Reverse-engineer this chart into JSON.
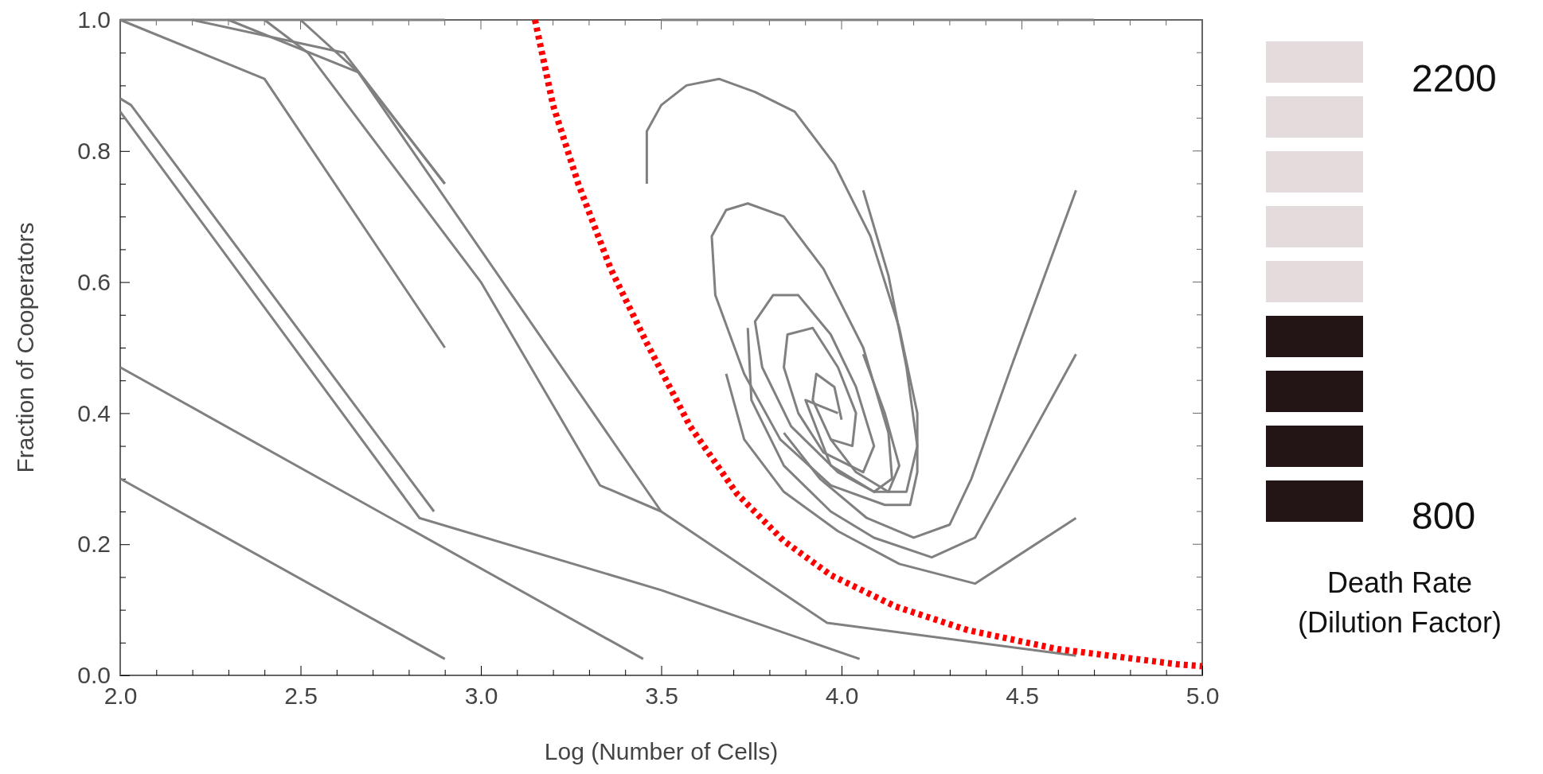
{
  "chart_data": {
    "type": "line",
    "xlabel": "Log (Number of Cells)",
    "ylabel": "Fraction of Cooperators",
    "xlim": [
      2.0,
      5.0
    ],
    "ylim": [
      0.0,
      1.0
    ],
    "xticks": [
      {
        "value": 2.0,
        "label": "2.0"
      },
      {
        "value": 2.1,
        "label": null
      },
      {
        "value": 2.2,
        "label": null
      },
      {
        "value": 2.3,
        "label": null
      },
      {
        "value": 2.4,
        "label": null
      },
      {
        "value": 2.5,
        "label": "2.5"
      },
      {
        "value": 2.6,
        "label": null
      },
      {
        "value": 2.7,
        "label": null
      },
      {
        "value": 2.8,
        "label": null
      },
      {
        "value": 2.9,
        "label": null
      },
      {
        "value": 3.0,
        "label": "3.0"
      },
      {
        "value": 3.1,
        "label": null
      },
      {
        "value": 3.2,
        "label": null
      },
      {
        "value": 3.3,
        "label": null
      },
      {
        "value": 3.4,
        "label": null
      },
      {
        "value": 3.5,
        "label": "3.5"
      },
      {
        "value": 3.6,
        "label": null
      },
      {
        "value": 3.7,
        "label": null
      },
      {
        "value": 3.8,
        "label": null
      },
      {
        "value": 3.9,
        "label": null
      },
      {
        "value": 4.0,
        "label": "4.0"
      },
      {
        "value": 4.1,
        "label": null
      },
      {
        "value": 4.2,
        "label": null
      },
      {
        "value": 4.3,
        "label": null
      },
      {
        "value": 4.4,
        "label": null
      },
      {
        "value": 4.5,
        "label": "4.5"
      },
      {
        "value": 4.6,
        "label": null
      },
      {
        "value": 4.7,
        "label": null
      },
      {
        "value": 4.8,
        "label": null
      },
      {
        "value": 4.9,
        "label": null
      },
      {
        "value": 5.0,
        "label": "5.0"
      }
    ],
    "yticks": [
      {
        "value": 0.0,
        "label": "0.0"
      },
      {
        "value": 0.05,
        "label": null
      },
      {
        "value": 0.1,
        "label": null
      },
      {
        "value": 0.15,
        "label": null
      },
      {
        "value": 0.2,
        "label": "0.2"
      },
      {
        "value": 0.25,
        "label": null
      },
      {
        "value": 0.3,
        "label": null
      },
      {
        "value": 0.35,
        "label": null
      },
      {
        "value": 0.4,
        "label": "0.4"
      },
      {
        "value": 0.45,
        "label": null
      },
      {
        "value": 0.5,
        "label": null
      },
      {
        "value": 0.55,
        "label": null
      },
      {
        "value": 0.6,
        "label": "0.6"
      },
      {
        "value": 0.65,
        "label": null
      },
      {
        "value": 0.7,
        "label": null
      },
      {
        "value": 0.75,
        "label": null
      },
      {
        "value": 0.8,
        "label": "0.8"
      },
      {
        "value": 0.85,
        "label": null
      },
      {
        "value": 0.9,
        "label": null
      },
      {
        "value": 0.95,
        "label": null
      },
      {
        "value": 1.0,
        "label": "1.0"
      }
    ],
    "grid": false,
    "marker": "none",
    "series": [
      {
        "color": "#808080",
        "x": [
          2.0,
          2.4,
          2.9
        ],
        "values": [
          1.0,
          0.91,
          0.5
        ]
      },
      {
        "color": "#808080",
        "x": [
          2.2,
          2.62,
          2.9
        ],
        "values": [
          1.0,
          0.95,
          0.75
        ]
      },
      {
        "color": "#808080",
        "x": [
          2.3,
          2.66,
          2.9
        ],
        "values": [
          1.0,
          0.92,
          0.75
        ]
      },
      {
        "color": "#808080",
        "x": [
          2.4,
          2.52,
          3.0,
          3.33,
          3.5,
          3.96,
          4.65
        ],
        "values": [
          1.0,
          0.95,
          0.6,
          0.29,
          0.25,
          0.08,
          0.03
        ]
      },
      {
        "color": "#808080",
        "x": [
          2.5,
          2.66,
          3.5
        ],
        "values": [
          1.0,
          0.92,
          0.25
        ]
      },
      {
        "color": "#808080",
        "x": [
          2.0,
          2.03,
          2.87
        ],
        "values": [
          0.88,
          0.87,
          0.25
        ]
      },
      {
        "color": "#808080",
        "x": [
          2.0,
          2.83,
          3.5,
          4.05
        ],
        "values": [
          0.86,
          0.24,
          0.13,
          0.025
        ]
      },
      {
        "color": "#808080",
        "x": [
          2.0,
          3.45
        ],
        "values": [
          0.47,
          0.025
        ]
      },
      {
        "color": "#808080",
        "x": [
          2.0,
          2.9
        ],
        "values": [
          0.3,
          0.025
        ]
      },
      {
        "color": "#808080",
        "x": [
          2.0,
          2.9
        ],
        "values": [
          1.0,
          1.0
        ]
      },
      {
        "color": "#808080",
        "x": [
          3.5,
          4.7
        ],
        "values": [
          1.0,
          1.0
        ]
      },
      {
        "color": "#808080",
        "x": [
          3.46,
          3.46,
          3.5,
          3.57,
          3.66,
          3.76,
          3.87,
          3.98,
          4.08,
          4.16,
          4.21,
          4.21,
          4.19,
          4.12,
          3.97,
          3.83,
          3.73,
          3.65,
          3.64,
          3.68,
          3.74,
          3.84,
          3.95,
          4.06,
          4.13,
          4.14,
          4.09,
          3.99,
          3.86,
          3.78,
          3.76,
          3.81,
          3.88,
          3.97,
          4.04,
          4.09,
          4.06,
          3.95,
          3.88,
          3.84,
          3.85,
          3.92,
          3.99,
          4.04,
          4.03,
          3.97,
          3.92,
          3.93,
          3.98,
          4.0
        ],
        "values": [
          0.75,
          0.83,
          0.87,
          0.9,
          0.91,
          0.89,
          0.86,
          0.78,
          0.67,
          0.53,
          0.4,
          0.31,
          0.26,
          0.26,
          0.29,
          0.36,
          0.46,
          0.58,
          0.67,
          0.71,
          0.72,
          0.7,
          0.62,
          0.5,
          0.37,
          0.3,
          0.28,
          0.31,
          0.38,
          0.47,
          0.54,
          0.58,
          0.58,
          0.52,
          0.44,
          0.35,
          0.31,
          0.34,
          0.4,
          0.47,
          0.52,
          0.53,
          0.47,
          0.4,
          0.35,
          0.36,
          0.42,
          0.46,
          0.44,
          0.39
        ]
      },
      {
        "color": "#808080",
        "x": [
          4.06,
          4.13,
          4.18,
          4.21,
          4.18,
          4.09,
          3.97,
          3.9,
          3.99
        ],
        "values": [
          0.74,
          0.61,
          0.47,
          0.35,
          0.28,
          0.28,
          0.32,
          0.42,
          0.4
        ]
      },
      {
        "color": "#808080",
        "x": [
          4.06,
          4.12,
          4.16,
          4.13,
          4.04,
          3.97
        ],
        "values": [
          0.49,
          0.4,
          0.32,
          0.28,
          0.31,
          0.36
        ]
      },
      {
        "color": "#808080",
        "x": [
          4.65,
          4.47,
          4.36,
          4.3,
          4.2,
          4.07,
          3.94,
          3.84
        ],
        "values": [
          0.74,
          0.47,
          0.3,
          0.23,
          0.21,
          0.24,
          0.3,
          0.37
        ]
      },
      {
        "color": "#808080",
        "x": [
          4.65,
          4.51,
          4.37,
          4.25,
          4.09,
          3.97,
          3.84,
          3.75,
          3.74
        ],
        "values": [
          0.49,
          0.35,
          0.21,
          0.18,
          0.21,
          0.25,
          0.32,
          0.42,
          0.53
        ]
      },
      {
        "color": "#808080",
        "x": [
          4.65,
          4.37,
          4.16,
          3.99,
          3.84,
          3.73,
          3.68
        ],
        "values": [
          0.24,
          0.14,
          0.17,
          0.22,
          0.28,
          0.36,
          0.46
        ]
      },
      {
        "color": "#ff0000",
        "line_style": "dotted",
        "x": [
          3.15,
          3.2,
          3.27,
          3.36,
          3.46,
          3.58,
          3.71,
          3.84,
          3.97,
          4.15,
          4.35,
          4.6,
          4.93,
          5.0
        ],
        "values": [
          1.0,
          0.87,
          0.75,
          0.62,
          0.507,
          0.38,
          0.277,
          0.205,
          0.153,
          0.105,
          0.069,
          0.04,
          0.017,
          0.014
        ]
      }
    ],
    "annotations": [
      "2200",
      "800",
      "Death Rate",
      "(Dilution Factor)"
    ]
  }
}
